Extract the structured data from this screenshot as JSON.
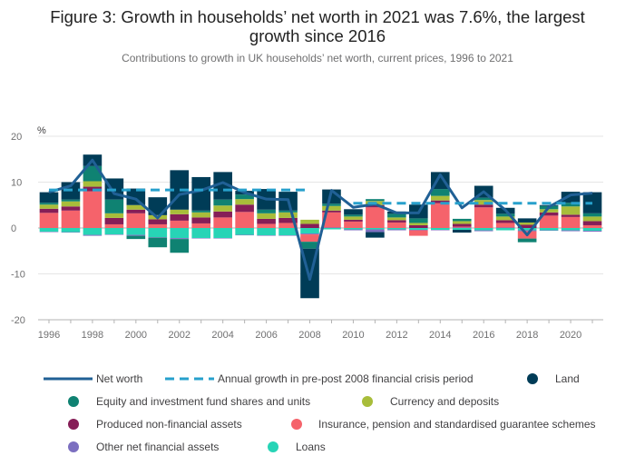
{
  "title_line1": "Figure 3: Growth in households’ net worth in 2021 was 7.6%, the largest",
  "title_line2": "growth since 2016",
  "subtitle": "Contributions to growth in UK households’ net worth, current prices, 1996 to 2021",
  "chart_data": {
    "type": "bar",
    "stacked": true,
    "title": "Figure 3: Growth in households’ net worth in 2021 was 7.6%, the largest growth since 2016",
    "subtitle": "Contributions to growth in UK households’ net worth, current prices, 1996 to 2021",
    "ylabel": "%",
    "ylim": [
      -20,
      20
    ],
    "yticks": [
      20,
      10,
      0,
      -10,
      -20
    ],
    "x": [
      1996,
      1997,
      1998,
      1999,
      2000,
      2001,
      2002,
      2003,
      2004,
      2005,
      2006,
      2007,
      2008,
      2009,
      2010,
      2011,
      2012,
      2013,
      2014,
      2015,
      2016,
      2017,
      2018,
      2019,
      2020,
      2021
    ],
    "xticks": [
      "1996",
      "1998",
      "2000",
      "2002",
      "2004",
      "2006",
      "2008",
      "2010",
      "2012",
      "2014",
      "2016",
      "2018",
      "2020"
    ],
    "grid": "horizontal",
    "legend_position": "bottom",
    "series": [
      {
        "name": "Loans",
        "color": "#27d4b6",
        "values": [
          -0.8,
          -0.9,
          -1.5,
          -1.4,
          -1.5,
          -2.0,
          -2.2,
          -2.2,
          -2.2,
          -1.5,
          -1.6,
          -1.6,
          -1.2,
          -0.3,
          -0.3,
          -0.3,
          -0.3,
          -0.4,
          -0.4,
          -0.4,
          -0.5,
          -0.5,
          -0.5,
          -0.5,
          -0.5,
          -0.6
        ]
      },
      {
        "name": "Other net financial assets",
        "color": "#7c6fc0",
        "values": [
          -0.1,
          -0.1,
          -0.2,
          -0.1,
          -0.2,
          -0.1,
          -0.2,
          -0.1,
          -0.1,
          -0.1,
          -0.1,
          -0.1,
          -0.2,
          0.1,
          -0.2,
          -0.6,
          -0.2,
          -0.1,
          -0.1,
          0.1,
          -0.2,
          0.1,
          -0.2,
          -0.1,
          -0.2,
          -0.2
        ]
      },
      {
        "name": "Insurance, pension and standardised guarantee schemes",
        "color": "#f5636b",
        "values": [
          3.3,
          3.8,
          8.0,
          0.8,
          3.2,
          0.8,
          1.6,
          1.0,
          2.3,
          3.5,
          0.9,
          1.1,
          -1.6,
          3.3,
          1.4,
          4.5,
          1.2,
          -1.2,
          5.4,
          0.2,
          4.5,
          1.0,
          -1.6,
          2.7,
          2.4,
          0.6
        ]
      },
      {
        "name": "Produced non-financial assets",
        "color": "#861e57",
        "values": [
          0.9,
          0.9,
          1.0,
          1.4,
          0.8,
          1.1,
          1.4,
          1.3,
          1.3,
          1.6,
          1.1,
          1.1,
          0.9,
          0.4,
          0.4,
          0.5,
          0.5,
          0.6,
          0.6,
          0.6,
          0.6,
          0.6,
          0.7,
          0.7,
          0.5,
          0.9
        ]
      },
      {
        "name": "Currency and deposits",
        "color": "#a8bd3a",
        "values": [
          0.9,
          1.1,
          1.2,
          1.0,
          1.0,
          0.9,
          1.0,
          1.1,
          1.3,
          1.2,
          1.2,
          1.2,
          0.9,
          1.0,
          0.7,
          0.9,
          0.6,
          0.5,
          1.0,
          0.6,
          1.0,
          0.8,
          0.5,
          0.7,
          1.8,
          1.0
        ]
      },
      {
        "name": "Equity and investment fund shares and units",
        "color": "#0f8272",
        "values": [
          0.4,
          0.4,
          3.3,
          3.0,
          -0.7,
          -2.1,
          -3.0,
          0.4,
          1.3,
          1.0,
          0.8,
          0.4,
          -1.5,
          0.5,
          0.4,
          0.4,
          0.8,
          1.0,
          1.5,
          0.5,
          0.5,
          0.6,
          -0.8,
          0.7,
          0.8,
          0.7
        ]
      },
      {
        "name": "Land",
        "color": "#003c57",
        "values": [
          2.3,
          3.8,
          2.5,
          4.6,
          3.6,
          3.9,
          8.6,
          7.3,
          6.0,
          0.8,
          4.5,
          4.1,
          -10.8,
          3.1,
          1.2,
          -1.2,
          0.5,
          3.0,
          3.7,
          -0.6,
          2.6,
          1.3,
          0.9,
          0.2,
          2.4,
          4.6
        ]
      }
    ],
    "lines": [
      {
        "name": "Net worth",
        "color": "#206095",
        "style": "solid",
        "values": [
          7.8,
          9.2,
          14.8,
          7.5,
          6.3,
          2.2,
          7.3,
          8.2,
          9.9,
          7.7,
          6.3,
          6.2,
          -11.2,
          8.2,
          4.5,
          5.2,
          3.3,
          3.3,
          11.6,
          4.4,
          7.9,
          3.9,
          -1.5,
          4.6,
          7.2,
          7.6
        ]
      },
      {
        "name": "Annual growth in pre-post 2008 financial crisis period",
        "color": "#27a0cc",
        "style": "dashed",
        "segments": [
          {
            "x": [
              1996,
              2008
            ],
            "y": [
              8.3,
              8.3
            ]
          },
          {
            "x": [
              2010,
              2021
            ],
            "y": [
              5.4,
              5.4
            ]
          }
        ]
      }
    ]
  },
  "legend": [
    {
      "label": "Net worth",
      "kind": "line",
      "color": "#206095"
    },
    {
      "label": "Annual growth in pre-post 2008 financial crisis period",
      "kind": "dash",
      "color": "#27a0cc"
    },
    {
      "label": "Land",
      "kind": "dot",
      "color": "#003c57"
    },
    {
      "label": "Equity and investment fund shares and units",
      "kind": "dot",
      "color": "#0f8272"
    },
    {
      "label": "Currency and deposits",
      "kind": "dot",
      "color": "#a8bd3a"
    },
    {
      "label": "Produced non-financial assets",
      "kind": "dot",
      "color": "#861e57"
    },
    {
      "label": "Insurance, pension and standardised guarantee schemes",
      "kind": "dot",
      "color": "#f5636b"
    },
    {
      "label": "Other net financial assets",
      "kind": "dot",
      "color": "#7c6fc0"
    },
    {
      "label": "Loans",
      "kind": "dot",
      "color": "#27d4b6"
    }
  ]
}
